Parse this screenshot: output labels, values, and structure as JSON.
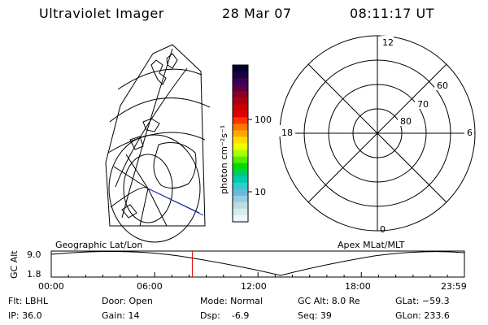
{
  "header": {
    "title": "Ultraviolet Imager",
    "date": "28 Mar 07",
    "time": "08:11:17 UT"
  },
  "colorbar": {
    "label": "photon cm⁻²s⁻¹",
    "ticks": [
      "100",
      "10"
    ],
    "colors": [
      "#000033",
      "#1a0040",
      "#3a0055",
      "#5a0044",
      "#880022",
      "#aa0011",
      "#cc0000",
      "#e00000",
      "#ff3300",
      "#ff7700",
      "#ffaa00",
      "#ffdd00",
      "#eeff00",
      "#aaff00",
      "#55ee00",
      "#00dd00",
      "#00cc66",
      "#00ccaa",
      "#33cccc",
      "#66bbdd",
      "#99ccdd",
      "#bbdde0",
      "#d8ecec",
      "#eef7f7"
    ]
  },
  "polar_plot": {
    "mlt_labels": [
      "12",
      "18",
      "6",
      "0"
    ],
    "lat_labels": [
      "60",
      "70",
      "80"
    ]
  },
  "timeline": {
    "ylabel": "GC Alt",
    "yticks": [
      "9.0",
      "1.8"
    ],
    "left_label": "Geographic Lat/Lon",
    "right_label": "Apex MLat/MLT",
    "xticks": [
      "00:00",
      "06:00",
      "12:00",
      "18:00",
      "23:59"
    ],
    "marker_hours": 8.188,
    "marker_color": "#dd0000"
  },
  "info": {
    "filter": "Flt: LBHL",
    "ip": "IP: 36.0",
    "door": "Door: Open",
    "gain": "Gain: 14",
    "mode": "Mode: Normal",
    "dsp": "Dsp:    -6.9",
    "gc_alt": "GC Alt: 8.0 Re",
    "seq": "Seq: 39",
    "glat": "GLat: −59.3",
    "glon": "GLon: 233.6"
  }
}
